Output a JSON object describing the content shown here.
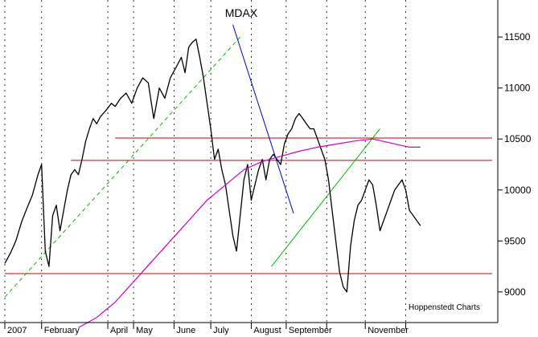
{
  "chart_data": {
    "type": "line",
    "title": "MDAX",
    "credit": "Hoppenstedt Charts",
    "ylim": [
      8700,
      11800
    ],
    "y_ticks": [
      9000,
      9500,
      10000,
      10500,
      11000,
      11500
    ],
    "x_range": [
      0,
      265
    ],
    "x_ticks": [
      {
        "label": "2007",
        "x": 0
      },
      {
        "label": "February",
        "x": 20
      },
      {
        "label": "April",
        "x": 56
      },
      {
        "label": "May",
        "x": 70
      },
      {
        "label": "June",
        "x": 92
      },
      {
        "label": "July",
        "x": 112
      },
      {
        "label": "August",
        "x": 134
      },
      {
        "label": "September",
        "x": 153
      },
      {
        "label": "",
        "x": 175
      },
      {
        "label": "November",
        "x": 196
      },
      {
        "label": "",
        "x": 218
      }
    ],
    "grid": "vertical dashed",
    "series": [
      {
        "color": "#000000",
        "x": [
          0,
          3,
          6,
          9,
          12,
          15,
          18,
          20,
          22,
          24,
          26,
          28,
          30,
          32,
          34,
          36,
          38,
          40,
          42,
          44,
          46,
          48,
          50,
          52,
          55,
          58,
          60,
          63,
          66,
          69,
          72,
          75,
          78,
          81,
          84,
          87,
          90,
          93,
          96,
          98,
          100,
          102,
          104,
          106,
          108,
          110,
          112,
          113,
          114,
          116,
          118,
          120,
          122,
          124,
          126,
          128,
          130,
          132,
          134,
          136,
          138,
          140,
          142,
          144,
          146,
          148,
          150,
          152,
          154,
          156,
          158,
          160,
          162,
          164,
          166,
          168,
          170,
          172,
          174,
          176,
          178,
          180,
          182,
          184,
          186,
          188,
          190,
          192,
          194,
          196,
          198,
          200,
          202,
          204,
          206,
          208,
          210,
          212,
          214,
          216,
          218,
          220,
          222,
          224,
          226
        ],
        "values": [
          9280,
          9380,
          9500,
          9680,
          9820,
          9950,
          10150,
          10250,
          9400,
          9250,
          9750,
          9850,
          9600,
          9800,
          10000,
          10150,
          10200,
          10150,
          10300,
          10480,
          10600,
          10700,
          10650,
          10720,
          10780,
          10850,
          10820,
          10900,
          10950,
          10850,
          11000,
          11100,
          11050,
          10700,
          11000,
          10900,
          11100,
          11200,
          11300,
          11150,
          11400,
          11450,
          11480,
          11300,
          11100,
          10850,
          10600,
          10450,
          10300,
          10400,
          10200,
          10050,
          9800,
          9550,
          9400,
          9750,
          10100,
          10250,
          9900,
          10050,
          10200,
          10300,
          10100,
          10300,
          10350,
          10300,
          10250,
          10450,
          10550,
          10600,
          10700,
          10750,
          10700,
          10650,
          10600,
          10600,
          10500,
          10400,
          10300,
          10100,
          9800,
          9500,
          9200,
          9050,
          9000,
          9450,
          9700,
          9850,
          9900,
          10000,
          10100,
          10050,
          9850,
          9600,
          9700,
          9800,
          9900,
          10000,
          10050,
          10100,
          10000,
          9800,
          9750,
          9700,
          9650
        ]
      },
      {
        "color": "#cc00cc",
        "x": [
          40,
          50,
          60,
          70,
          80,
          90,
          100,
          110,
          120,
          130,
          140,
          150,
          160,
          170,
          180,
          190,
          200,
          210,
          215,
          220,
          226
        ],
        "values": [
          8650,
          8750,
          8900,
          9100,
          9300,
          9500,
          9700,
          9900,
          10050,
          10200,
          10280,
          10330,
          10380,
          10420,
          10450,
          10480,
          10500,
          10460,
          10440,
          10420,
          10420
        ]
      }
    ],
    "reference_lines": [
      {
        "kind": "horizontal",
        "y": 10510,
        "x_from": 60,
        "x_to": 265,
        "color": "#cc0000"
      },
      {
        "kind": "horizontal",
        "y": 10290,
        "x_from": 36,
        "x_to": 265,
        "color": "#cc0000"
      },
      {
        "kind": "horizontal",
        "y": 9180,
        "x_from": 0,
        "x_to": 265,
        "color": "#cc0000"
      },
      {
        "kind": "trend",
        "x1": 0,
        "y1": 8950,
        "x2": 128,
        "y2": 11500,
        "color": "#00bb00",
        "dash": true
      },
      {
        "kind": "trend",
        "x1": 145,
        "y1": 9250,
        "x2": 204,
        "y2": 10600,
        "color": "#00bb00",
        "dash": false
      },
      {
        "kind": "trend",
        "x1": 124,
        "y1": 11620,
        "x2": 157,
        "y2": 9770,
        "color": "#0000cc",
        "dash": false
      }
    ]
  }
}
